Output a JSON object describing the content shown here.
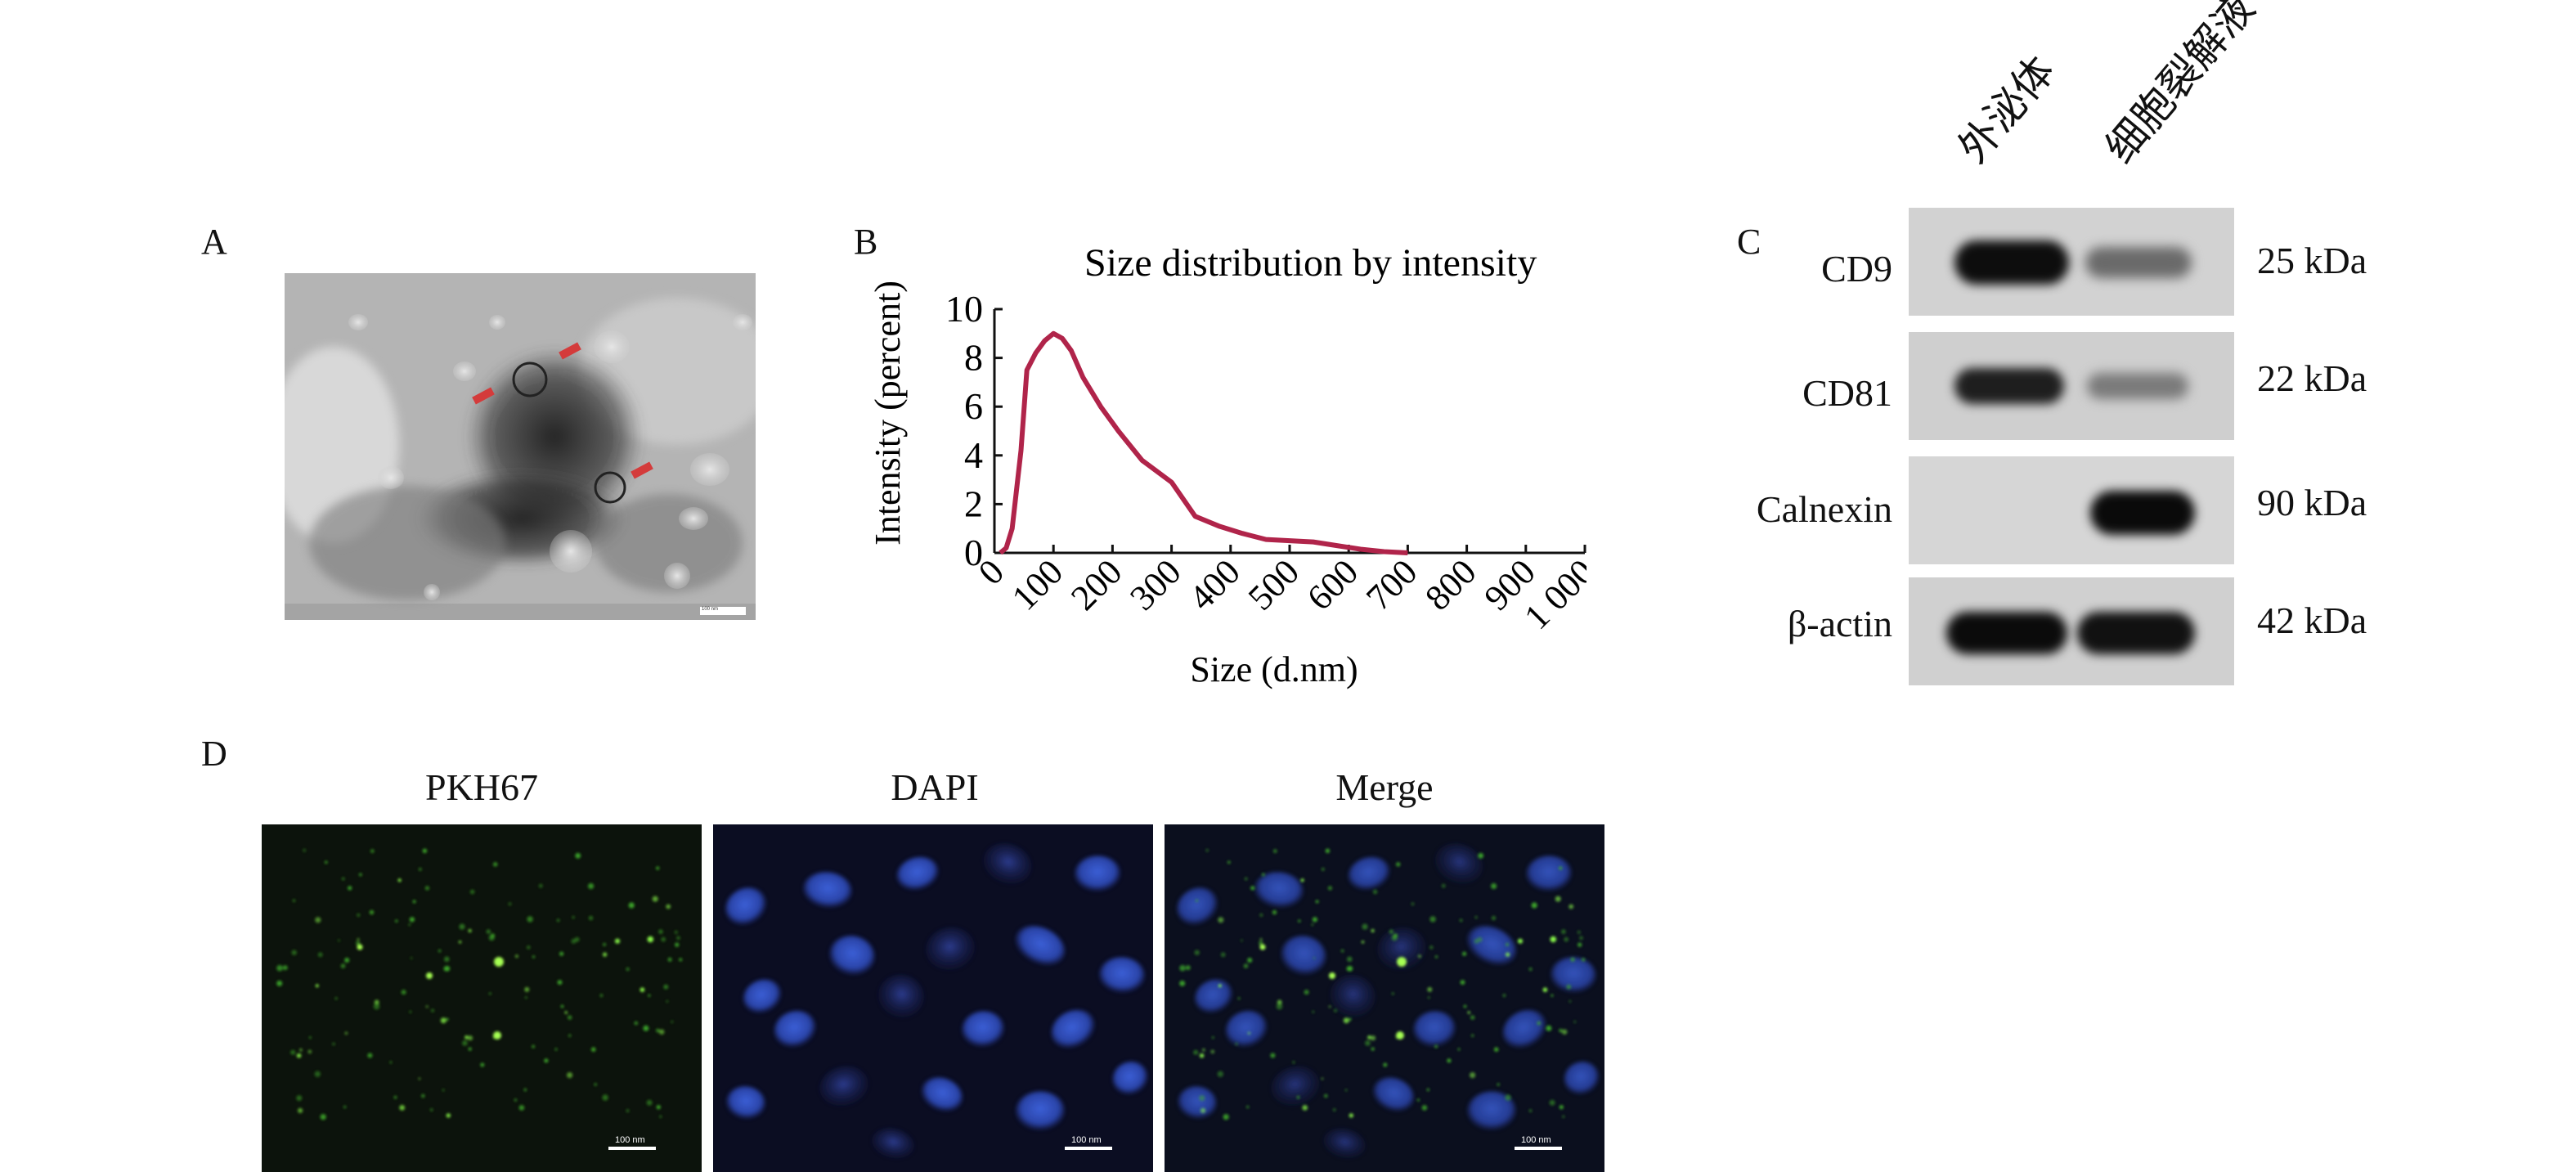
{
  "panel_labels": {
    "a": "A",
    "b": "B",
    "c": "C",
    "d": "D"
  },
  "panel_a": {
    "scale_text": "100 nm"
  },
  "chart_data": {
    "type": "line",
    "title": "Size distribution by intensity",
    "xlabel": "Size (d.nm)",
    "ylabel": "Intensity (percent)",
    "xlim": [
      0,
      1000
    ],
    "ylim": [
      0,
      10
    ],
    "xticks": [
      "0",
      "100",
      "200",
      "300",
      "400",
      "500",
      "600",
      "700",
      "800",
      "900",
      "1 000"
    ],
    "yticks": [
      "0",
      "2",
      "4",
      "6",
      "8",
      "10"
    ],
    "series": [
      {
        "color": "#b0244a",
        "x": [
          10,
          20,
          30,
          45,
          55,
          70,
          85,
          100,
          115,
          130,
          150,
          180,
          210,
          250,
          300,
          340,
          380,
          420,
          460,
          500,
          540,
          580,
          620,
          660,
          700
        ],
        "y": [
          0,
          0.2,
          1.0,
          4.2,
          7.5,
          8.2,
          8.7,
          9.0,
          8.8,
          8.3,
          7.2,
          6.0,
          5.0,
          3.8,
          2.9,
          1.5,
          1.1,
          0.8,
          0.55,
          0.5,
          0.45,
          0.3,
          0.15,
          0.05,
          0
        ]
      }
    ]
  },
  "panel_c": {
    "lanes": [
      "外泌体",
      "细胞裂解液"
    ],
    "rows": [
      {
        "protein": "CD9",
        "kda": "25 kDa"
      },
      {
        "protein": "CD81",
        "kda": "22 kDa"
      },
      {
        "protein": "Calnexin",
        "kda": "90 kDa"
      },
      {
        "protein": "β-actin",
        "kda": "42 kDa"
      }
    ]
  },
  "panel_d": {
    "titles": [
      "PKH67",
      "DAPI",
      "Merge"
    ],
    "scale_text": "100 nm"
  }
}
